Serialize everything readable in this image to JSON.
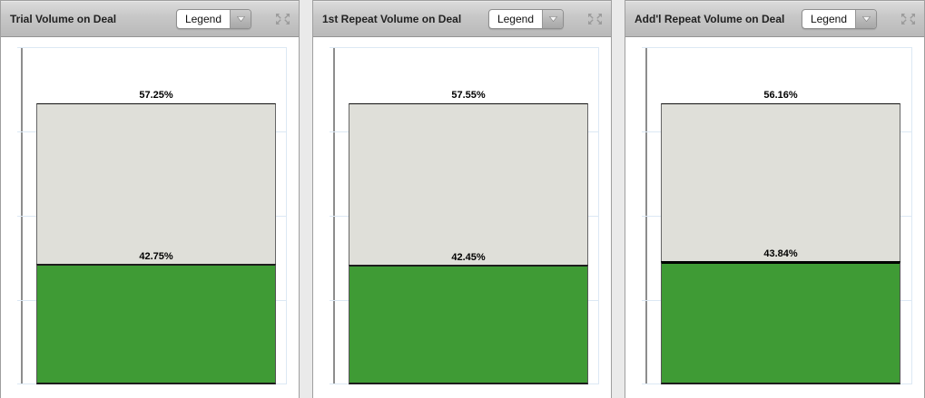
{
  "controls": {
    "legend_dropdown_label": "Legend"
  },
  "chart_data": [
    {
      "type": "bar",
      "stacked": true,
      "title": "Trial Volume on Deal",
      "ylim": [
        0,
        120
      ],
      "grid": true,
      "legend": "collapsed-dropdown",
      "series": [
        {
          "name": "segment-top",
          "value": 57.25,
          "label": "57.25%",
          "color": "#dfdfd9"
        },
        {
          "name": "segment-bottom",
          "value": 42.75,
          "label": "42.75%",
          "color": "#3f9b35"
        }
      ]
    },
    {
      "type": "bar",
      "stacked": true,
      "title": "1st Repeat Volume on Deal",
      "ylim": [
        0,
        120
      ],
      "grid": true,
      "legend": "collapsed-dropdown",
      "series": [
        {
          "name": "segment-top",
          "value": 57.55,
          "label": "57.55%",
          "color": "#dfdfd9"
        },
        {
          "name": "segment-bottom",
          "value": 42.45,
          "label": "42.45%",
          "color": "#3f9b35"
        }
      ]
    },
    {
      "type": "bar",
      "stacked": true,
      "title": "Add'l Repeat Volume on Deal",
      "ylim": [
        0,
        120
      ],
      "grid": true,
      "legend": "collapsed-dropdown",
      "series": [
        {
          "name": "segment-top",
          "value": 56.16,
          "label": "56.16%",
          "color": "#dfdfd9"
        },
        {
          "name": "segment-bottom",
          "value": 43.84,
          "label": "43.84%",
          "color": "#3f9b35"
        }
      ]
    }
  ]
}
